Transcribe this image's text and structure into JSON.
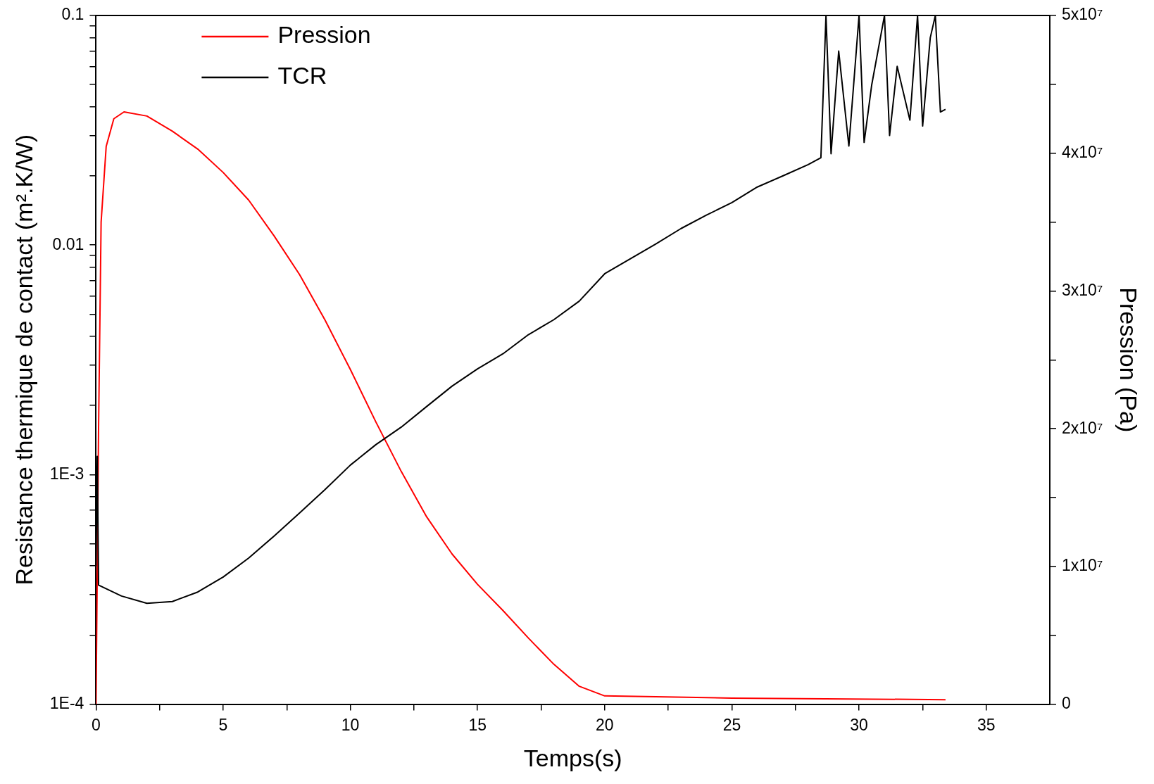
{
  "chart_data": {
    "type": "line",
    "xlabel": "Temps(s)",
    "ylabel": "Resistance thermique de contact (m².K/W)",
    "y2label": "Pression (Pa)",
    "log": "y",
    "grid": false,
    "legend": "top left",
    "marker": "none",
    "line_style": "solid",
    "xlim": [
      0,
      37.5
    ],
    "xticks": [
      0,
      {
        "value": 2.5,
        "label": null
      },
      5,
      {
        "value": 7.5,
        "label": null
      },
      10,
      {
        "value": 12.5,
        "label": null
      },
      15,
      {
        "value": 17.5,
        "label": null
      },
      20,
      {
        "value": 22.5,
        "label": null
      },
      25,
      {
        "value": 27.5,
        "label": null
      },
      30,
      {
        "value": 32.5,
        "label": null
      },
      35
    ],
    "ylim": [
      0.0001,
      0.1
    ],
    "yticks": [
      {
        "value": 0.0001,
        "label": "1E-4"
      },
      {
        "value": 0.0002,
        "label": null
      },
      {
        "value": 0.0003,
        "label": null
      },
      {
        "value": 0.0004,
        "label": null
      },
      {
        "value": 0.0005,
        "label": null
      },
      {
        "value": 0.0006,
        "label": null
      },
      {
        "value": 0.0007,
        "label": null
      },
      {
        "value": 0.0008,
        "label": null
      },
      {
        "value": 0.0009,
        "label": null
      },
      {
        "value": 0.001,
        "label": "1E-3"
      },
      {
        "value": 0.002,
        "label": null
      },
      {
        "value": 0.003,
        "label": null
      },
      {
        "value": 0.004,
        "label": null
      },
      {
        "value": 0.005,
        "label": null
      },
      {
        "value": 0.006,
        "label": null
      },
      {
        "value": 0.007,
        "label": null
      },
      {
        "value": 0.008,
        "label": null
      },
      {
        "value": 0.009,
        "label": null
      },
      0.01,
      {
        "value": 0.02,
        "label": null
      },
      {
        "value": 0.03,
        "label": null
      },
      {
        "value": 0.04,
        "label": null
      },
      {
        "value": 0.05,
        "label": null
      },
      {
        "value": 0.06,
        "label": null
      },
      {
        "value": 0.07,
        "label": null
      },
      {
        "value": 0.08,
        "label": null
      },
      {
        "value": 0.09,
        "label": null
      },
      0.1
    ],
    "y2lim": [
      0,
      50000000
    ],
    "y2ticks": [
      0,
      {
        "value": 5000000,
        "label": null
      },
      {
        "value": 10000000,
        "label": "1x10⁷"
      },
      {
        "value": 15000000,
        "label": null
      },
      {
        "value": 20000000,
        "label": "2x10⁷"
      },
      {
        "value": 25000000,
        "label": null
      },
      {
        "value": 30000000,
        "label": "3x10⁷"
      },
      {
        "value": 35000000,
        "label": null
      },
      {
        "value": 40000000,
        "label": "4x10⁷"
      },
      {
        "value": 45000000,
        "label": null
      },
      {
        "value": 50000000,
        "label": "5x10⁷"
      }
    ],
    "series": [
      {
        "name": "Pression",
        "color": "#ff0000",
        "axis": "y2",
        "x": [
          0,
          0.1,
          0.2,
          0.4,
          0.7,
          1.1,
          2,
          3,
          4,
          5,
          6,
          7,
          8,
          9,
          10,
          11,
          12,
          13,
          14,
          15,
          16,
          17,
          18,
          19,
          20,
          25,
          33.4
        ],
        "values": [
          0,
          20000000,
          35000000,
          40500000,
          42500000,
          43000000,
          42700000,
          41600000,
          40300000,
          38600000,
          36600000,
          34000000,
          31200000,
          27900000,
          24300000,
          20500000,
          16900000,
          13600000,
          10900000,
          8700000,
          6800000,
          4800000,
          2900000,
          1300000,
          600000,
          440000,
          330000
        ]
      },
      {
        "name": "TCR",
        "color": "#000000",
        "x": [
          0,
          0.05,
          0.1,
          1,
          2,
          3,
          4,
          5,
          6,
          7,
          8,
          9,
          10,
          11,
          12,
          13,
          14,
          15,
          16,
          17,
          18,
          19,
          20,
          21,
          22,
          23,
          24,
          25,
          26,
          27,
          28,
          28.5,
          28.7,
          28.9,
          29.2,
          29.6,
          30,
          30.2,
          30.5,
          31,
          31.2,
          31.5,
          32,
          32.3,
          32.5,
          32.8,
          33,
          33.2,
          33.4
        ],
        "values": [
          0.0004,
          0.0012,
          0.00033,
          0.000296,
          0.000275,
          0.00028,
          0.000308,
          0.000358,
          0.000433,
          0.00054,
          0.00068,
          0.00086,
          0.0011,
          0.00135,
          0.00161,
          0.00198,
          0.00243,
          0.00289,
          0.00336,
          0.00407,
          0.00473,
          0.0057,
          0.0075,
          0.0087,
          0.0101,
          0.0118,
          0.0135,
          0.0153,
          0.0179,
          0.02,
          0.0224,
          0.024,
          0.1,
          0.025,
          0.07,
          0.027,
          0.1,
          0.028,
          0.05,
          0.1,
          0.03,
          0.06,
          0.035,
          0.1,
          0.033,
          0.08,
          0.1,
          0.038,
          0.039
        ]
      }
    ]
  }
}
